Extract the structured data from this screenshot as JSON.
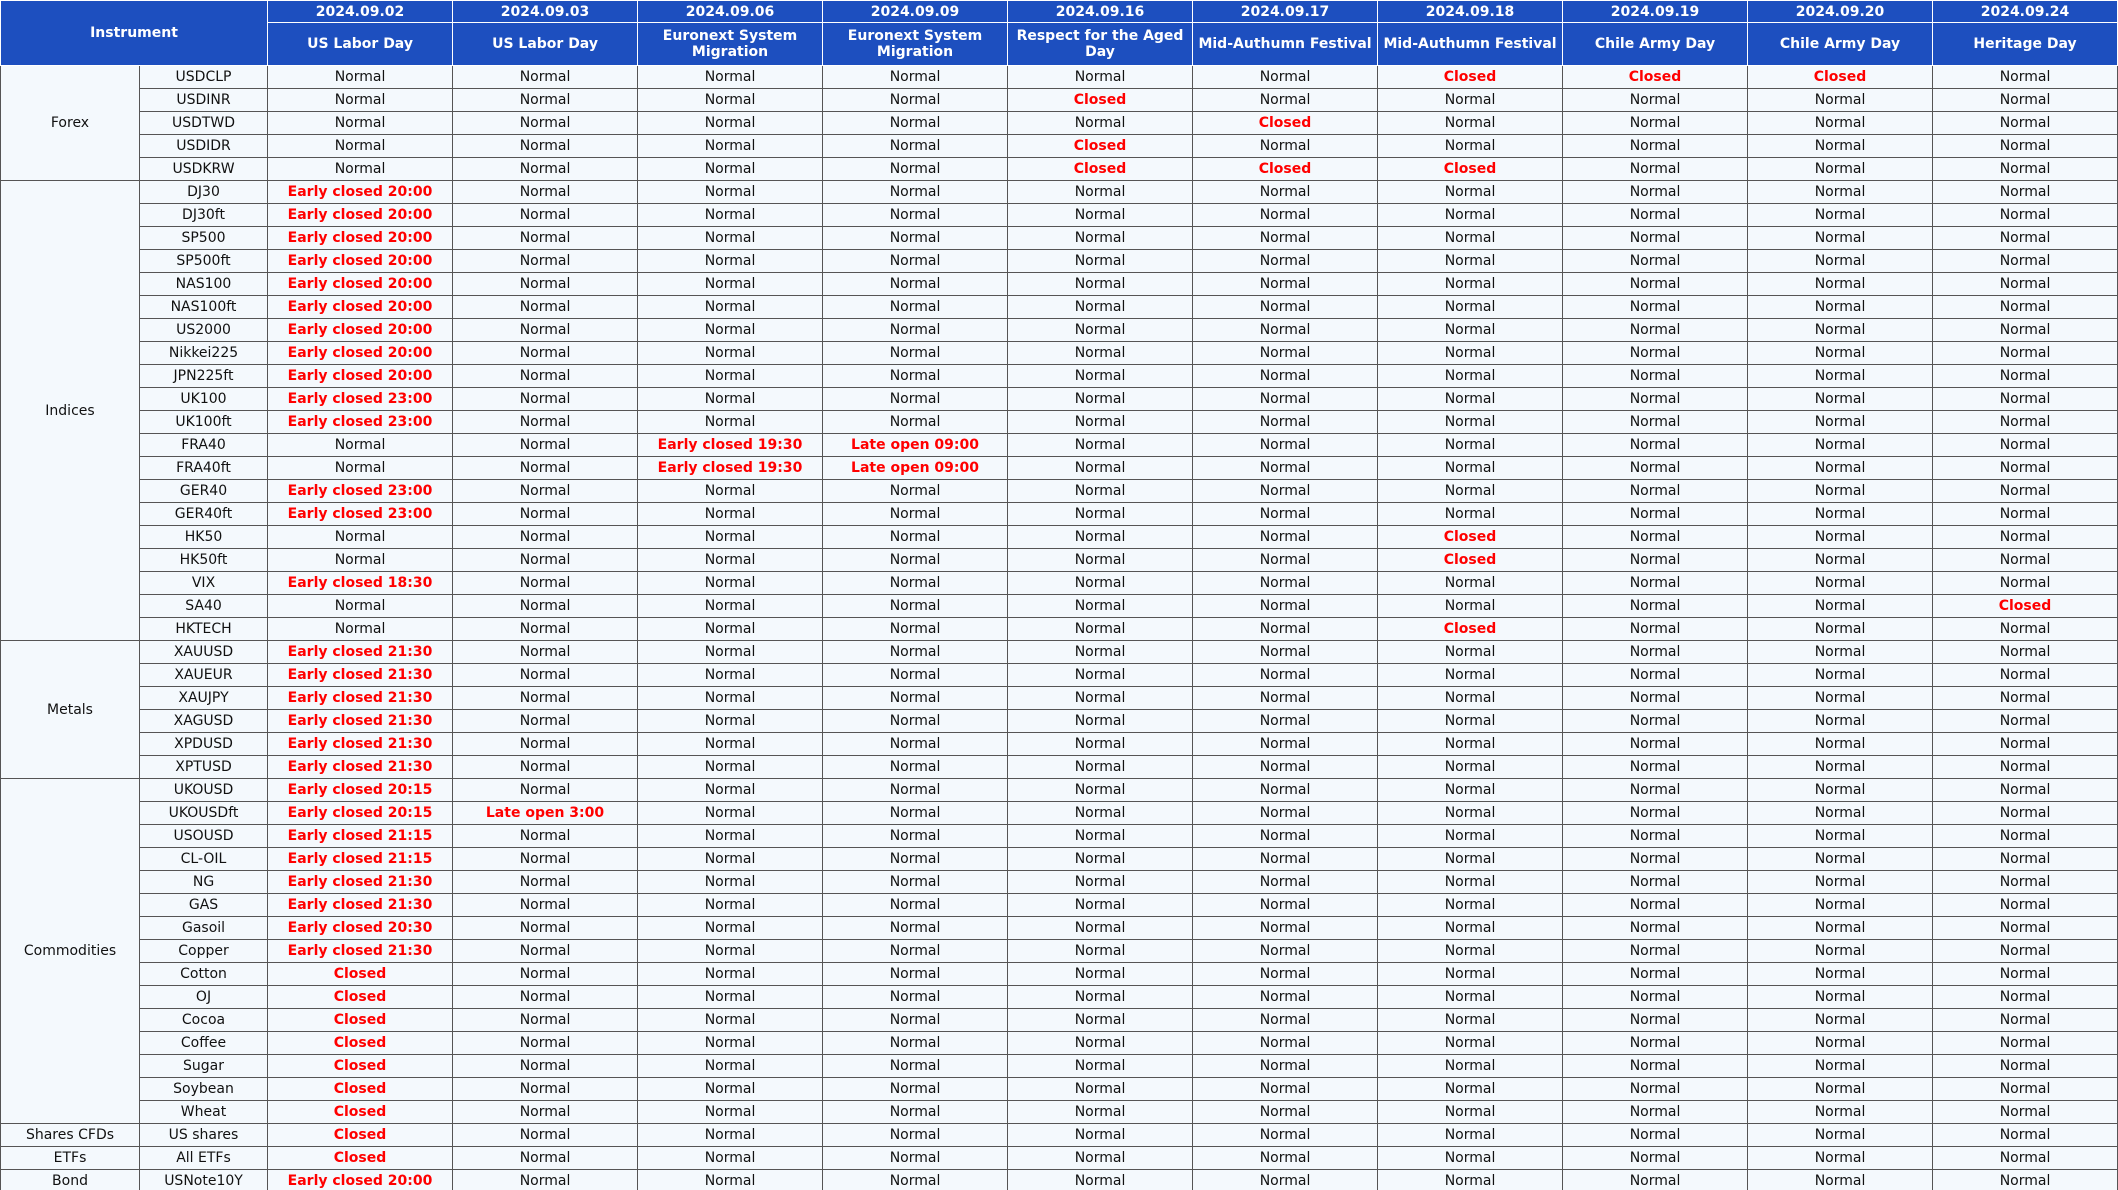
{
  "table": {
    "corner": "Instrument",
    "columns": [
      {
        "date": "2024.09.02",
        "holiday": "US Labor Day"
      },
      {
        "date": "2024.09.03",
        "holiday": "US Labor Day"
      },
      {
        "date": "2024.09.06",
        "holiday": "Euronext System Migration"
      },
      {
        "date": "2024.09.09",
        "holiday": "Euronext System Migration"
      },
      {
        "date": "2024.09.16",
        "holiday": "Respect for the Aged Day"
      },
      {
        "date": "2024.09.17",
        "holiday": "Mid-Authumn Festival"
      },
      {
        "date": "2024.09.18",
        "holiday": "Mid-Authumn Festival"
      },
      {
        "date": "2024.09.19",
        "holiday": "Chile Army Day"
      },
      {
        "date": "2024.09.20",
        "holiday": "Chile Army Day"
      },
      {
        "date": "2024.09.24",
        "holiday": "Heritage Day"
      }
    ],
    "groups": [
      {
        "name": "Forex",
        "rows": [
          {
            "instrument": "USDCLP",
            "cells": [
              "Normal",
              "Normal",
              "Normal",
              "Normal",
              "Normal",
              "Normal",
              "Closed",
              "Closed",
              "Closed",
              "Normal"
            ]
          },
          {
            "instrument": "USDINR",
            "cells": [
              "Normal",
              "Normal",
              "Normal",
              "Normal",
              "Closed",
              "Normal",
              "Normal",
              "Normal",
              "Normal",
              "Normal"
            ]
          },
          {
            "instrument": "USDTWD",
            "cells": [
              "Normal",
              "Normal",
              "Normal",
              "Normal",
              "Normal",
              "Closed",
              "Normal",
              "Normal",
              "Normal",
              "Normal"
            ]
          },
          {
            "instrument": "USDIDR",
            "cells": [
              "Normal",
              "Normal",
              "Normal",
              "Normal",
              "Closed",
              "Normal",
              "Normal",
              "Normal",
              "Normal",
              "Normal"
            ]
          },
          {
            "instrument": "USDKRW",
            "cells": [
              "Normal",
              "Normal",
              "Normal",
              "Normal",
              "Closed",
              "Closed",
              "Closed",
              "Normal",
              "Normal",
              "Normal"
            ]
          }
        ]
      },
      {
        "name": "Indices",
        "rows": [
          {
            "instrument": "DJ30",
            "cells": [
              "Early closed 20:00",
              "Normal",
              "Normal",
              "Normal",
              "Normal",
              "Normal",
              "Normal",
              "Normal",
              "Normal",
              "Normal"
            ]
          },
          {
            "instrument": "DJ30ft",
            "cells": [
              "Early closed 20:00",
              "Normal",
              "Normal",
              "Normal",
              "Normal",
              "Normal",
              "Normal",
              "Normal",
              "Normal",
              "Normal"
            ]
          },
          {
            "instrument": "SP500",
            "cells": [
              "Early closed 20:00",
              "Normal",
              "Normal",
              "Normal",
              "Normal",
              "Normal",
              "Normal",
              "Normal",
              "Normal",
              "Normal"
            ]
          },
          {
            "instrument": "SP500ft",
            "cells": [
              "Early closed 20:00",
              "Normal",
              "Normal",
              "Normal",
              "Normal",
              "Normal",
              "Normal",
              "Normal",
              "Normal",
              "Normal"
            ]
          },
          {
            "instrument": "NAS100",
            "cells": [
              "Early closed 20:00",
              "Normal",
              "Normal",
              "Normal",
              "Normal",
              "Normal",
              "Normal",
              "Normal",
              "Normal",
              "Normal"
            ]
          },
          {
            "instrument": "NAS100ft",
            "cells": [
              "Early closed 20:00",
              "Normal",
              "Normal",
              "Normal",
              "Normal",
              "Normal",
              "Normal",
              "Normal",
              "Normal",
              "Normal"
            ]
          },
          {
            "instrument": "US2000",
            "cells": [
              "Early closed 20:00",
              "Normal",
              "Normal",
              "Normal",
              "Normal",
              "Normal",
              "Normal",
              "Normal",
              "Normal",
              "Normal"
            ]
          },
          {
            "instrument": "Nikkei225",
            "cells": [
              "Early closed 20:00",
              "Normal",
              "Normal",
              "Normal",
              "Normal",
              "Normal",
              "Normal",
              "Normal",
              "Normal",
              "Normal"
            ]
          },
          {
            "instrument": "JPN225ft",
            "cells": [
              "Early closed 20:00",
              "Normal",
              "Normal",
              "Normal",
              "Normal",
              "Normal",
              "Normal",
              "Normal",
              "Normal",
              "Normal"
            ]
          },
          {
            "instrument": "UK100",
            "cells": [
              "Early closed 23:00",
              "Normal",
              "Normal",
              "Normal",
              "Normal",
              "Normal",
              "Normal",
              "Normal",
              "Normal",
              "Normal"
            ]
          },
          {
            "instrument": "UK100ft",
            "cells": [
              "Early closed 23:00",
              "Normal",
              "Normal",
              "Normal",
              "Normal",
              "Normal",
              "Normal",
              "Normal",
              "Normal",
              "Normal"
            ]
          },
          {
            "instrument": "FRA40",
            "cells": [
              "Normal",
              "Normal",
              "Early closed 19:30",
              "Late open 09:00",
              "Normal",
              "Normal",
              "Normal",
              "Normal",
              "Normal",
              "Normal"
            ]
          },
          {
            "instrument": "FRA40ft",
            "cells": [
              "Normal",
              "Normal",
              "Early closed 19:30",
              "Late open 09:00",
              "Normal",
              "Normal",
              "Normal",
              "Normal",
              "Normal",
              "Normal"
            ]
          },
          {
            "instrument": "GER40",
            "cells": [
              "Early closed 23:00",
              "Normal",
              "Normal",
              "Normal",
              "Normal",
              "Normal",
              "Normal",
              "Normal",
              "Normal",
              "Normal"
            ]
          },
          {
            "instrument": "GER40ft",
            "cells": [
              "Early closed 23:00",
              "Normal",
              "Normal",
              "Normal",
              "Normal",
              "Normal",
              "Normal",
              "Normal",
              "Normal",
              "Normal"
            ]
          },
          {
            "instrument": "HK50",
            "cells": [
              "Normal",
              "Normal",
              "Normal",
              "Normal",
              "Normal",
              "Normal",
              "Closed",
              "Normal",
              "Normal",
              "Normal"
            ]
          },
          {
            "instrument": "HK50ft",
            "cells": [
              "Normal",
              "Normal",
              "Normal",
              "Normal",
              "Normal",
              "Normal",
              "Closed",
              "Normal",
              "Normal",
              "Normal"
            ]
          },
          {
            "instrument": "VIX",
            "cells": [
              "Early closed 18:30",
              "Normal",
              "Normal",
              "Normal",
              "Normal",
              "Normal",
              "Normal",
              "Normal",
              "Normal",
              "Normal"
            ]
          },
          {
            "instrument": "SA40",
            "cells": [
              "Normal",
              "Normal",
              "Normal",
              "Normal",
              "Normal",
              "Normal",
              "Normal",
              "Normal",
              "Normal",
              "Closed"
            ]
          },
          {
            "instrument": "HKTECH",
            "cells": [
              "Normal",
              "Normal",
              "Normal",
              "Normal",
              "Normal",
              "Normal",
              "Closed",
              "Normal",
              "Normal",
              "Normal"
            ]
          }
        ]
      },
      {
        "name": "Metals",
        "rows": [
          {
            "instrument": "XAUUSD",
            "cells": [
              "Early closed 21:30",
              "Normal",
              "Normal",
              "Normal",
              "Normal",
              "Normal",
              "Normal",
              "Normal",
              "Normal",
              "Normal"
            ]
          },
          {
            "instrument": "XAUEUR",
            "cells": [
              "Early closed 21:30",
              "Normal",
              "Normal",
              "Normal",
              "Normal",
              "Normal",
              "Normal",
              "Normal",
              "Normal",
              "Normal"
            ]
          },
          {
            "instrument": "XAUJPY",
            "cells": [
              "Early closed 21:30",
              "Normal",
              "Normal",
              "Normal",
              "Normal",
              "Normal",
              "Normal",
              "Normal",
              "Normal",
              "Normal"
            ]
          },
          {
            "instrument": "XAGUSD",
            "cells": [
              "Early closed 21:30",
              "Normal",
              "Normal",
              "Normal",
              "Normal",
              "Normal",
              "Normal",
              "Normal",
              "Normal",
              "Normal"
            ]
          },
          {
            "instrument": "XPDUSD",
            "cells": [
              "Early closed 21:30",
              "Normal",
              "Normal",
              "Normal",
              "Normal",
              "Normal",
              "Normal",
              "Normal",
              "Normal",
              "Normal"
            ]
          },
          {
            "instrument": "XPTUSD",
            "cells": [
              "Early closed 21:30",
              "Normal",
              "Normal",
              "Normal",
              "Normal",
              "Normal",
              "Normal",
              "Normal",
              "Normal",
              "Normal"
            ]
          }
        ]
      },
      {
        "name": "Commodities",
        "rows": [
          {
            "instrument": "UKOUSD",
            "cells": [
              "Early closed 20:15",
              "Normal",
              "Normal",
              "Normal",
              "Normal",
              "Normal",
              "Normal",
              "Normal",
              "Normal",
              "Normal"
            ]
          },
          {
            "instrument": "UKOUSDft",
            "cells": [
              "Early closed 20:15",
              "Late open 3:00",
              "Normal",
              "Normal",
              "Normal",
              "Normal",
              "Normal",
              "Normal",
              "Normal",
              "Normal"
            ]
          },
          {
            "instrument": "USOUSD",
            "cells": [
              "Early closed 21:15",
              "Normal",
              "Normal",
              "Normal",
              "Normal",
              "Normal",
              "Normal",
              "Normal",
              "Normal",
              "Normal"
            ]
          },
          {
            "instrument": "CL-OIL",
            "cells": [
              "Early closed 21:15",
              "Normal",
              "Normal",
              "Normal",
              "Normal",
              "Normal",
              "Normal",
              "Normal",
              "Normal",
              "Normal"
            ]
          },
          {
            "instrument": "NG",
            "cells": [
              "Early closed 21:30",
              "Normal",
              "Normal",
              "Normal",
              "Normal",
              "Normal",
              "Normal",
              "Normal",
              "Normal",
              "Normal"
            ]
          },
          {
            "instrument": "GAS",
            "cells": [
              "Early closed 21:30",
              "Normal",
              "Normal",
              "Normal",
              "Normal",
              "Normal",
              "Normal",
              "Normal",
              "Normal",
              "Normal"
            ]
          },
          {
            "instrument": "Gasoil",
            "cells": [
              "Early closed 20:30",
              "Normal",
              "Normal",
              "Normal",
              "Normal",
              "Normal",
              "Normal",
              "Normal",
              "Normal",
              "Normal"
            ]
          },
          {
            "instrument": "Copper",
            "cells": [
              "Early closed 21:30",
              "Normal",
              "Normal",
              "Normal",
              "Normal",
              "Normal",
              "Normal",
              "Normal",
              "Normal",
              "Normal"
            ]
          },
          {
            "instrument": "Cotton",
            "cells": [
              "Closed",
              "Normal",
              "Normal",
              "Normal",
              "Normal",
              "Normal",
              "Normal",
              "Normal",
              "Normal",
              "Normal"
            ]
          },
          {
            "instrument": "OJ",
            "cells": [
              "Closed",
              "Normal",
              "Normal",
              "Normal",
              "Normal",
              "Normal",
              "Normal",
              "Normal",
              "Normal",
              "Normal"
            ]
          },
          {
            "instrument": "Cocoa",
            "cells": [
              "Closed",
              "Normal",
              "Normal",
              "Normal",
              "Normal",
              "Normal",
              "Normal",
              "Normal",
              "Normal",
              "Normal"
            ]
          },
          {
            "instrument": "Coffee",
            "cells": [
              "Closed",
              "Normal",
              "Normal",
              "Normal",
              "Normal",
              "Normal",
              "Normal",
              "Normal",
              "Normal",
              "Normal"
            ]
          },
          {
            "instrument": "Sugar",
            "cells": [
              "Closed",
              "Normal",
              "Normal",
              "Normal",
              "Normal",
              "Normal",
              "Normal",
              "Normal",
              "Normal",
              "Normal"
            ]
          },
          {
            "instrument": "Soybean",
            "cells": [
              "Closed",
              "Normal",
              "Normal",
              "Normal",
              "Normal",
              "Normal",
              "Normal",
              "Normal",
              "Normal",
              "Normal"
            ]
          },
          {
            "instrument": "Wheat",
            "cells": [
              "Closed",
              "Normal",
              "Normal",
              "Normal",
              "Normal",
              "Normal",
              "Normal",
              "Normal",
              "Normal",
              "Normal"
            ]
          }
        ]
      },
      {
        "name": "Shares CFDs",
        "rows": [
          {
            "instrument": "US shares",
            "cells": [
              "Closed",
              "Normal",
              "Normal",
              "Normal",
              "Normal",
              "Normal",
              "Normal",
              "Normal",
              "Normal",
              "Normal"
            ]
          }
        ]
      },
      {
        "name": "ETFs",
        "rows": [
          {
            "instrument": "All ETFs",
            "cells": [
              "Closed",
              "Normal",
              "Normal",
              "Normal",
              "Normal",
              "Normal",
              "Normal",
              "Normal",
              "Normal",
              "Normal"
            ]
          }
        ]
      },
      {
        "name": "Bond",
        "rows": [
          {
            "instrument": "USNote10Y",
            "cells": [
              "Early closed 20:00",
              "Normal",
              "Normal",
              "Normal",
              "Normal",
              "Normal",
              "Normal",
              "Normal",
              "Normal",
              "Normal"
            ]
          }
        ]
      }
    ]
  }
}
